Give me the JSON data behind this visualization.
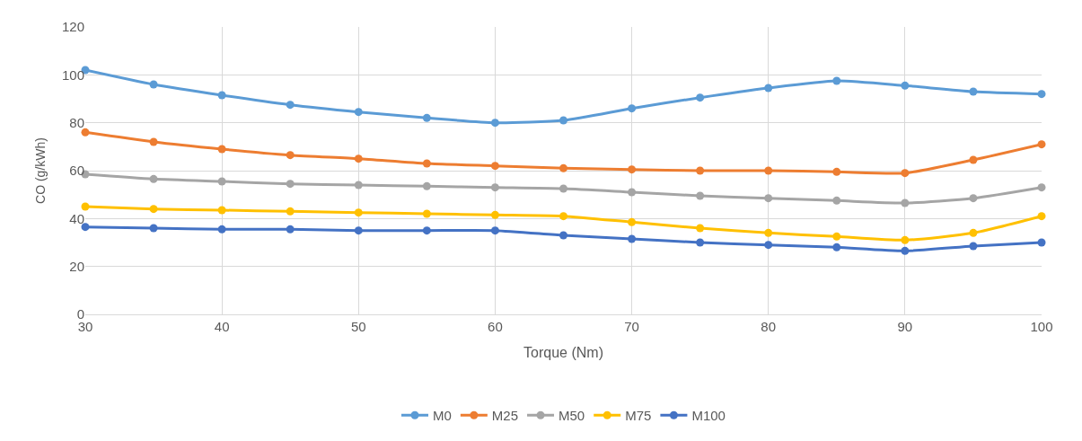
{
  "chart_data": {
    "type": "line",
    "xlabel": "Torque (Nm)",
    "ylabel": "CO (g/kWh)",
    "x": [
      30,
      35,
      40,
      45,
      50,
      55,
      60,
      65,
      70,
      75,
      80,
      85,
      90,
      95,
      100
    ],
    "series": [
      {
        "name": "M0",
        "color": "#5b9bd5",
        "values": [
          102,
          96,
          91.5,
          87.5,
          84.5,
          82,
          80,
          81,
          86,
          90.5,
          94.5,
          97.5,
          95.5,
          93,
          92
        ]
      },
      {
        "name": "M25",
        "color": "#ed7d31",
        "values": [
          76,
          72,
          69,
          66.5,
          65,
          63,
          62,
          61,
          60.5,
          60,
          60,
          59.5,
          59,
          64.5,
          71
        ]
      },
      {
        "name": "M50",
        "color": "#a5a5a5",
        "values": [
          58.5,
          56.5,
          55.5,
          54.5,
          54,
          53.5,
          53,
          52.5,
          51,
          49.5,
          48.5,
          47.5,
          46.5,
          48.5,
          53
        ]
      },
      {
        "name": "M75",
        "color": "#ffc000",
        "values": [
          45,
          44,
          43.5,
          43,
          42.5,
          42,
          41.5,
          41,
          38.5,
          36,
          34,
          32.5,
          31,
          34,
          41
        ]
      },
      {
        "name": "M100",
        "color": "#4472c4",
        "values": [
          36.5,
          36,
          35.5,
          35.5,
          35,
          35,
          35,
          33,
          31.5,
          30,
          29,
          28,
          26.5,
          28.5,
          30
        ]
      }
    ],
    "xlim": [
      30,
      100
    ],
    "xticks": [
      30,
      40,
      50,
      60,
      70,
      80,
      90,
      100
    ],
    "ylim": [
      0,
      120
    ],
    "yticks": [
      0,
      20,
      40,
      60,
      80,
      100,
      120
    ],
    "grid": true,
    "legend": "bottom",
    "marker": "circle",
    "line_style": "solid"
  }
}
